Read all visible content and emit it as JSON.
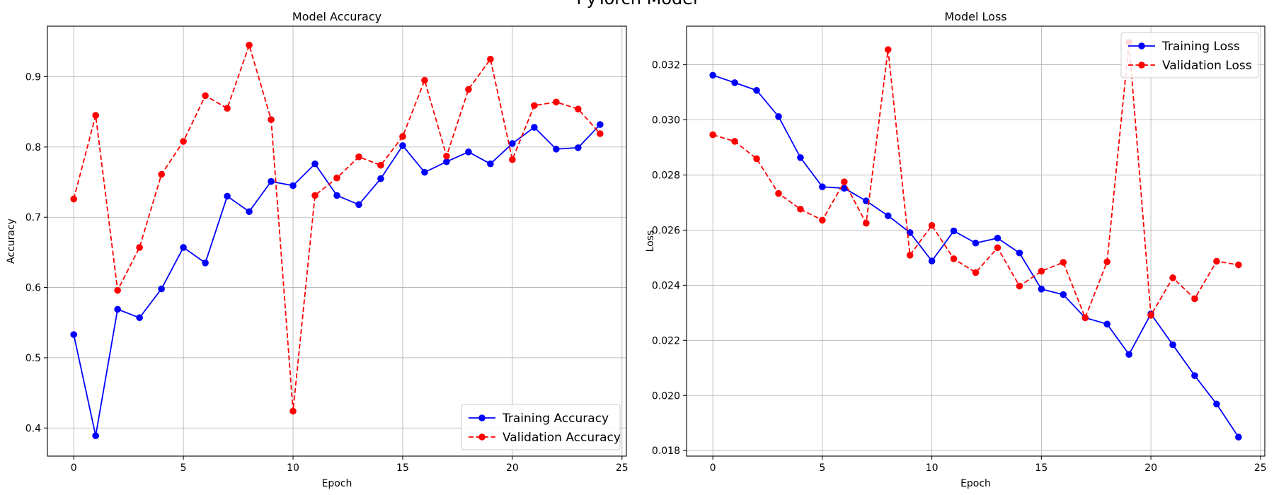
{
  "figure": {
    "suptitle": "PyTorch Model"
  },
  "chart_data": [
    {
      "type": "line",
      "title": "Model Accuracy",
      "xlabel": "Epoch",
      "ylabel": "Accuracy",
      "xlim": [
        -1.2,
        25.2
      ],
      "ylim": [
        0.36,
        0.972
      ],
      "xticks": [
        0,
        5,
        10,
        15,
        20,
        25
      ],
      "yticks": [
        0.4,
        0.5,
        0.6,
        0.7,
        0.8,
        0.9
      ],
      "ytick_decimals": 1,
      "grid": true,
      "legend_position": "lower-right",
      "x": [
        0,
        1,
        2,
        3,
        4,
        5,
        6,
        7,
        8,
        9,
        10,
        11,
        12,
        13,
        14,
        15,
        16,
        17,
        18,
        19,
        20,
        21,
        22,
        23,
        24
      ],
      "series": [
        {
          "name": "Training Accuracy",
          "color": "#0000ff",
          "line_style": "solid",
          "marker": "circle",
          "values": [
            0.533,
            0.389,
            0.569,
            0.557,
            0.598,
            0.657,
            0.635,
            0.73,
            0.708,
            0.751,
            0.745,
            0.776,
            0.731,
            0.718,
            0.755,
            0.802,
            0.764,
            0.779,
            0.793,
            0.776,
            0.805,
            0.828,
            0.797,
            0.799,
            0.832
          ]
        },
        {
          "name": "Validation Accuracy",
          "color": "#ff0000",
          "line_style": "dashed",
          "marker": "circle",
          "values": [
            0.726,
            0.845,
            0.596,
            0.657,
            0.761,
            0.808,
            0.873,
            0.855,
            0.945,
            0.839,
            0.424,
            0.731,
            0.756,
            0.786,
            0.774,
            0.815,
            0.895,
            0.787,
            0.882,
            0.925,
            0.782,
            0.859,
            0.864,
            0.854,
            0.819
          ]
        }
      ]
    },
    {
      "type": "line",
      "title": "Model Loss",
      "xlabel": "Epoch",
      "ylabel": "Loss",
      "xlim": [
        -1.2,
        25.2
      ],
      "ylim": [
        0.0178,
        0.0334
      ],
      "xticks": [
        0,
        5,
        10,
        15,
        20,
        25
      ],
      "yticks": [
        0.018,
        0.02,
        0.022,
        0.024,
        0.026,
        0.028,
        0.03,
        0.032
      ],
      "ytick_decimals": 3,
      "grid": true,
      "legend_position": "upper-right",
      "x": [
        0,
        1,
        2,
        3,
        4,
        5,
        6,
        7,
        8,
        9,
        10,
        11,
        12,
        13,
        14,
        15,
        16,
        17,
        18,
        19,
        20,
        21,
        22,
        23,
        24
      ],
      "series": [
        {
          "name": "Training Loss",
          "color": "#0000ff",
          "line_style": "solid",
          "marker": "circle",
          "values": [
            0.03162,
            0.03135,
            0.03107,
            0.03012,
            0.02863,
            0.02757,
            0.02752,
            0.02706,
            0.02652,
            0.02591,
            0.02488,
            0.02597,
            0.02553,
            0.02571,
            0.02517,
            0.02386,
            0.02366,
            0.02282,
            0.02259,
            0.02149,
            0.02296,
            0.02184,
            0.02072,
            0.01969,
            0.01849
          ]
        },
        {
          "name": "Validation Loss",
          "color": "#ff0000",
          "line_style": "dashed",
          "marker": "circle",
          "values": [
            0.02946,
            0.02922,
            0.02859,
            0.02733,
            0.02676,
            0.02636,
            0.02775,
            0.02625,
            0.03255,
            0.02509,
            0.02617,
            0.02496,
            0.02446,
            0.02536,
            0.02397,
            0.02451,
            0.02483,
            0.02282,
            0.02485,
            0.03281,
            0.02291,
            0.02427,
            0.02351,
            0.02487,
            0.02474
          ]
        }
      ]
    }
  ]
}
